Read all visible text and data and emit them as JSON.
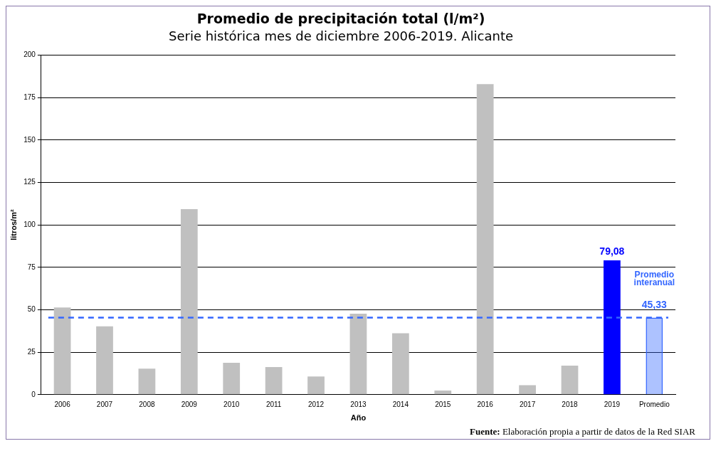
{
  "chart_data": {
    "type": "bar",
    "title": "Promedio de precipitación total (l/m²)",
    "subtitle": "Serie histórica mes de diciembre 2006-2019. Alicante",
    "xlabel": "Año",
    "ylabel": "litros/m²",
    "categories": [
      "2006",
      "2007",
      "2008",
      "2009",
      "2010",
      "2011",
      "2012",
      "2013",
      "2014",
      "2015",
      "2016",
      "2017",
      "2018",
      "2019",
      "Promedio"
    ],
    "values": [
      51.3,
      40.2,
      15.3,
      109.3,
      18.8,
      16.3,
      10.7,
      47.7,
      36.2,
      2.4,
      182.9,
      5.6,
      17.1,
      79.08,
      45.33
    ],
    "colors": [
      "#c0c0c0",
      "#c0c0c0",
      "#c0c0c0",
      "#c0c0c0",
      "#c0c0c0",
      "#c0c0c0",
      "#c0c0c0",
      "#c0c0c0",
      "#c0c0c0",
      "#c0c0c0",
      "#c0c0c0",
      "#c0c0c0",
      "#c0c0c0",
      "#0000ff",
      "#3366ff"
    ],
    "value_labels": [
      null,
      null,
      null,
      null,
      null,
      null,
      null,
      null,
      null,
      null,
      null,
      null,
      null,
      "79,08",
      "45,33"
    ],
    "ylim": [
      0,
      200
    ],
    "yticks": [
      0,
      25,
      50,
      75,
      100,
      125,
      150,
      175,
      200
    ],
    "grid": "y",
    "ref_lines": [
      {
        "axis": "y",
        "value": 45.33,
        "label": "Promedio interanual",
        "color": "#3366ff",
        "line_style": "dashed"
      }
    ],
    "annotations": [
      "Fuente: Elaboración propia a partir de datos de la Red SIAR"
    ]
  }
}
